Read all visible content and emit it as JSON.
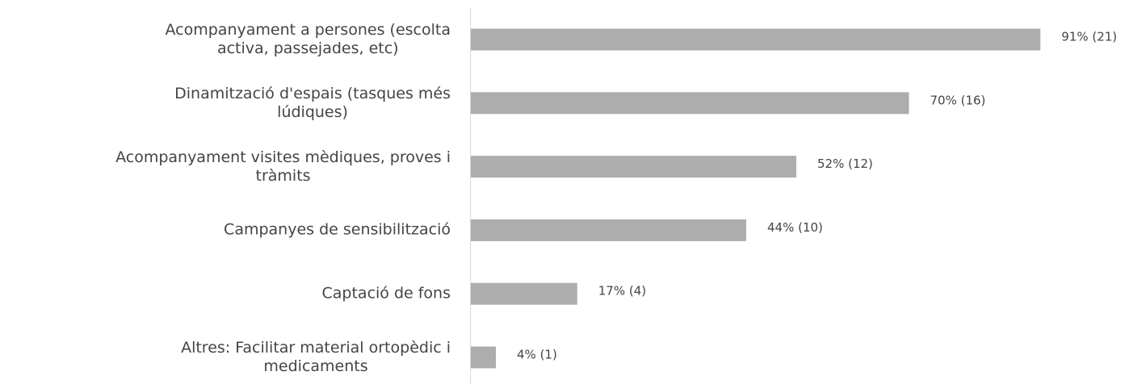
{
  "chart_data": {
    "type": "bar",
    "orientation": "horizontal",
    "categories": [
      "Acompanyament a persones (escolta\nactiva, passejades, etc)",
      "Dinamització d'espais (tasques més\nlúdiques)",
      "Acompanyament visites mèdiques, proves i\ntràmits",
      "Campanyes de sensibilització",
      "Captació de fons",
      "Altres: Facilitar material ortopèdic i\nmedicaments"
    ],
    "values": [
      91,
      70,
      52,
      44,
      17,
      4
    ],
    "value_labels": [
      "91% (21)",
      "70% (16)",
      "52% (12)",
      "44% (10)",
      "17% (4)",
      "4% (1)"
    ],
    "color": "#adadad",
    "xlim": [
      0,
      100
    ]
  }
}
